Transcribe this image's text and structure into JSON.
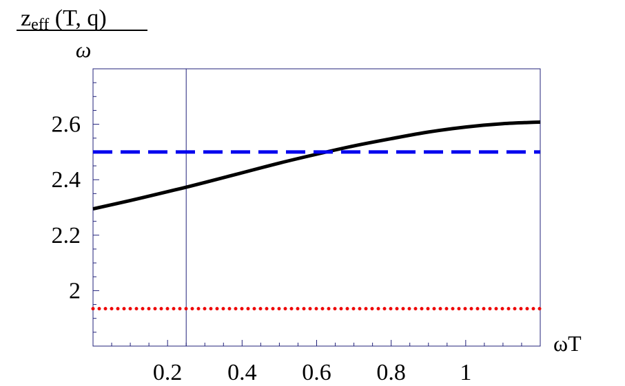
{
  "chart_data": {
    "type": "line",
    "ylabel": {
      "numerator_main": "z",
      "numerator_sub": "eff",
      "numerator_rest": " (T, q)",
      "denominator": "ω"
    },
    "xlabel": "ωT",
    "xlim": [
      0,
      1.2
    ],
    "ylim": [
      1.8,
      2.8
    ],
    "x_ticks": [
      {
        "value": 0.2,
        "label": "0.2"
      },
      {
        "value": 0.4,
        "label": "0.4"
      },
      {
        "value": 0.6,
        "label": "0.6"
      },
      {
        "value": 0.8,
        "label": "0.8"
      },
      {
        "value": 1.0,
        "label": "1"
      }
    ],
    "y_ticks": [
      {
        "value": 2.0,
        "label": "2"
      },
      {
        "value": 2.2,
        "label": "2.2"
      },
      {
        "value": 2.4,
        "label": "2.4"
      },
      {
        "value": 2.6,
        "label": "2.6"
      }
    ],
    "grid": false,
    "vertical_marker_x": 0.25,
    "series": [
      {
        "style": "solid",
        "color": "#000000",
        "x": [
          0,
          0.1,
          0.2,
          0.25,
          0.3,
          0.4,
          0.5,
          0.6,
          0.7,
          0.8,
          0.9,
          1.0,
          1.1,
          1.2
        ],
        "y": [
          2.295,
          2.325,
          2.357,
          2.373,
          2.39,
          2.425,
          2.46,
          2.492,
          2.522,
          2.548,
          2.572,
          2.59,
          2.602,
          2.608
        ]
      },
      {
        "style": "dashed",
        "color": "#0000ee",
        "x": [
          0,
          1.2
        ],
        "y": [
          2.5,
          2.5
        ]
      },
      {
        "style": "dotted",
        "color": "#ee0000",
        "x": [
          0,
          1.2
        ],
        "y": [
          1.935,
          1.935
        ]
      }
    ]
  }
}
